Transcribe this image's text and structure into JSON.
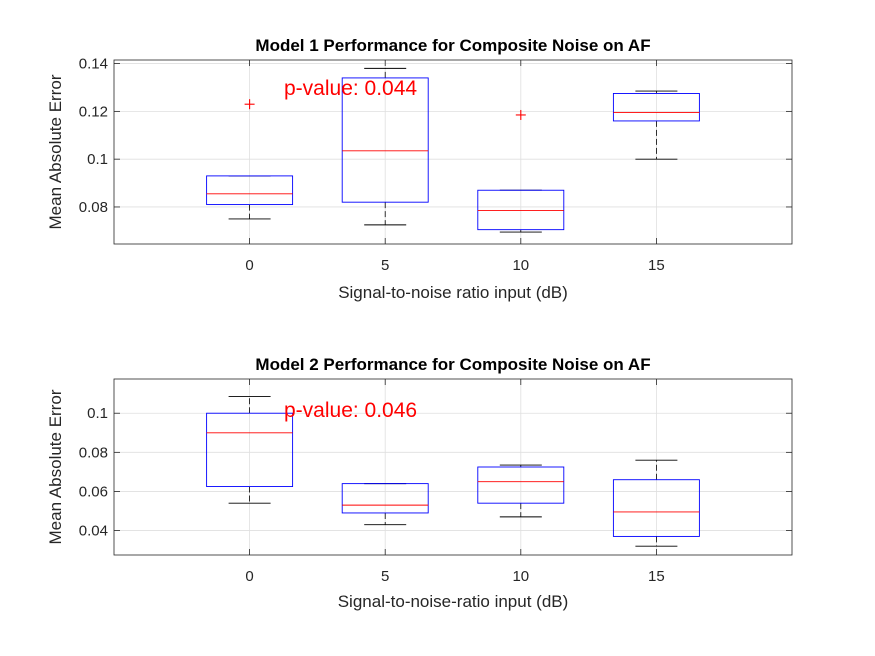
{
  "colors": {
    "box": "#0000ff",
    "median": "#ff0000",
    "whisker": "#000000",
    "outlier": "#ff0000",
    "annotation": "#ff0000",
    "grid": "#dfdfdf",
    "axis": "#262626"
  },
  "chart_data": [
    {
      "type": "boxplot",
      "title": "Model 1 Performance for Composite Noise on AF",
      "xlabel": "Signal-to-noise ratio input (dB)",
      "ylabel": "Mean Absolute Error",
      "annotation": "p-value: 0.044",
      "ylim": [
        0.0645,
        0.1415
      ],
      "yticks": [
        0.08,
        0.1,
        0.12,
        0.14
      ],
      "ytick_labels": [
        "0.08",
        "0.1",
        "0.12",
        "0.14"
      ],
      "grid": true,
      "categories": [
        "0",
        "5",
        "10",
        "15"
      ],
      "boxes": [
        {
          "whisker_low": 0.075,
          "q1": 0.081,
          "median": 0.0855,
          "q3": 0.093,
          "whisker_high": 0.093,
          "outliers": [
            0.123
          ]
        },
        {
          "whisker_low": 0.0725,
          "q1": 0.082,
          "median": 0.1035,
          "q3": 0.134,
          "whisker_high": 0.138,
          "outliers": []
        },
        {
          "whisker_low": 0.0695,
          "q1": 0.0705,
          "median": 0.0785,
          "q3": 0.087,
          "whisker_high": 0.087,
          "outliers": [
            0.1185
          ]
        },
        {
          "whisker_low": 0.1,
          "q1": 0.116,
          "median": 0.1195,
          "q3": 0.1275,
          "whisker_high": 0.1285,
          "outliers": []
        }
      ]
    },
    {
      "type": "boxplot",
      "title": "Model 2 Performance for Composite Noise on AF",
      "xlabel": "Signal-to-noise-ratio input (dB)",
      "ylabel": "Mean Absolute Error",
      "annotation": "p-value: 0.046",
      "ylim": [
        0.0275,
        0.1175
      ],
      "yticks": [
        0.04,
        0.06,
        0.08,
        0.1
      ],
      "ytick_labels": [
        "0.04",
        "0.06",
        "0.08",
        "0.1"
      ],
      "grid": true,
      "categories": [
        "0",
        "5",
        "10",
        "15"
      ],
      "boxes": [
        {
          "whisker_low": 0.054,
          "q1": 0.0625,
          "median": 0.09,
          "q3": 0.1,
          "whisker_high": 0.1085,
          "outliers": []
        },
        {
          "whisker_low": 0.043,
          "q1": 0.049,
          "median": 0.053,
          "q3": 0.064,
          "whisker_high": 0.064,
          "outliers": []
        },
        {
          "whisker_low": 0.047,
          "q1": 0.054,
          "median": 0.065,
          "q3": 0.0725,
          "whisker_high": 0.0735,
          "outliers": []
        },
        {
          "whisker_low": 0.032,
          "q1": 0.037,
          "median": 0.0495,
          "q3": 0.066,
          "whisker_high": 0.076,
          "outliers": []
        }
      ]
    }
  ]
}
